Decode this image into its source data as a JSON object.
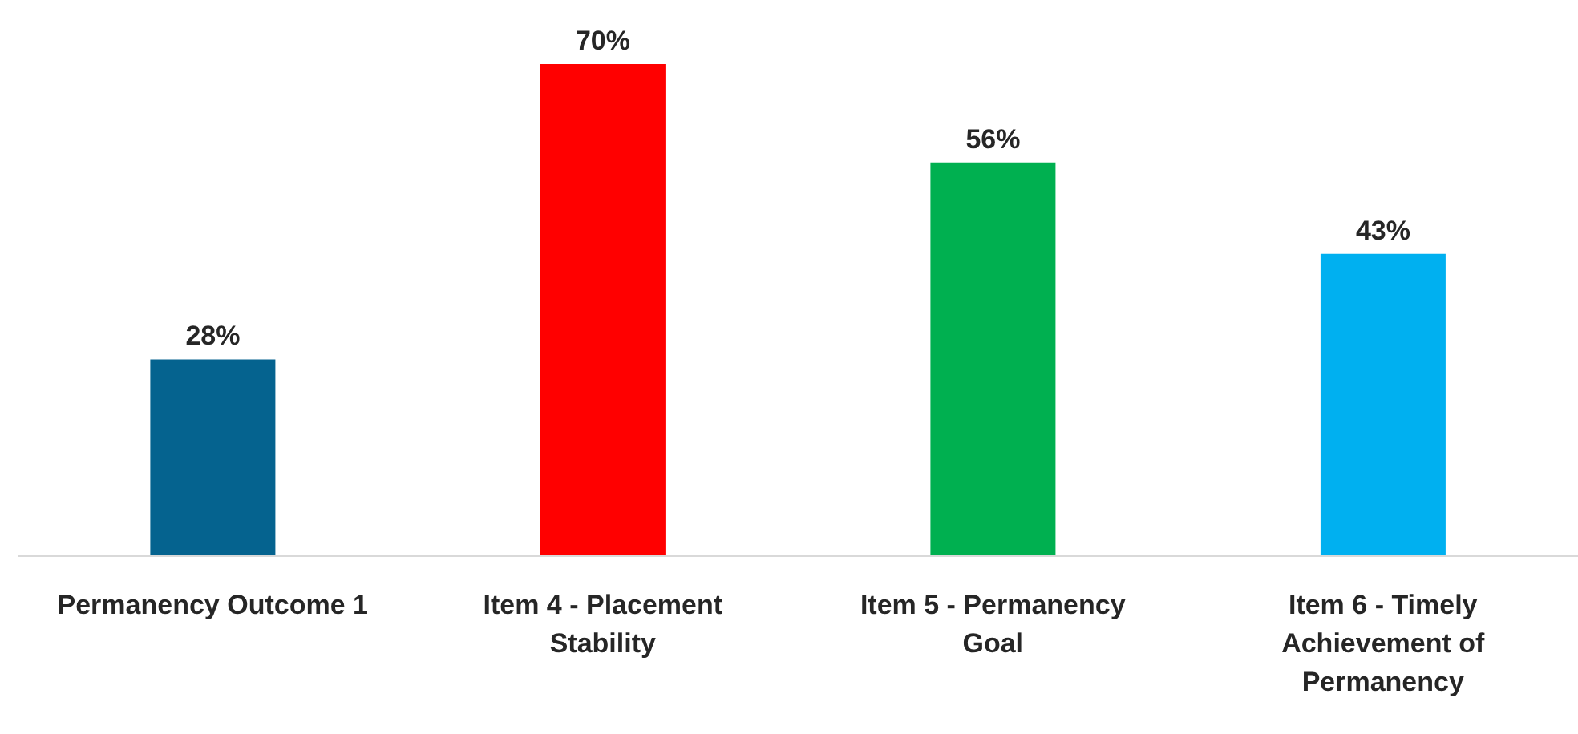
{
  "chart_data": {
    "type": "bar",
    "categories": [
      "Permanency Outcome 1",
      "Item 4 - Placement Stability",
      "Item 5 - Permanency Goal",
      "Item 6 - Timely Achievement of Permanency"
    ],
    "values": [
      28,
      70,
      56,
      43
    ],
    "colors": [
      "#05638f",
      "#ff0000",
      "#00b050",
      "#00b0f0"
    ],
    "value_labels": [
      "28%",
      "70%",
      "56%",
      "43%"
    ],
    "grid": false,
    "legend": false
  }
}
